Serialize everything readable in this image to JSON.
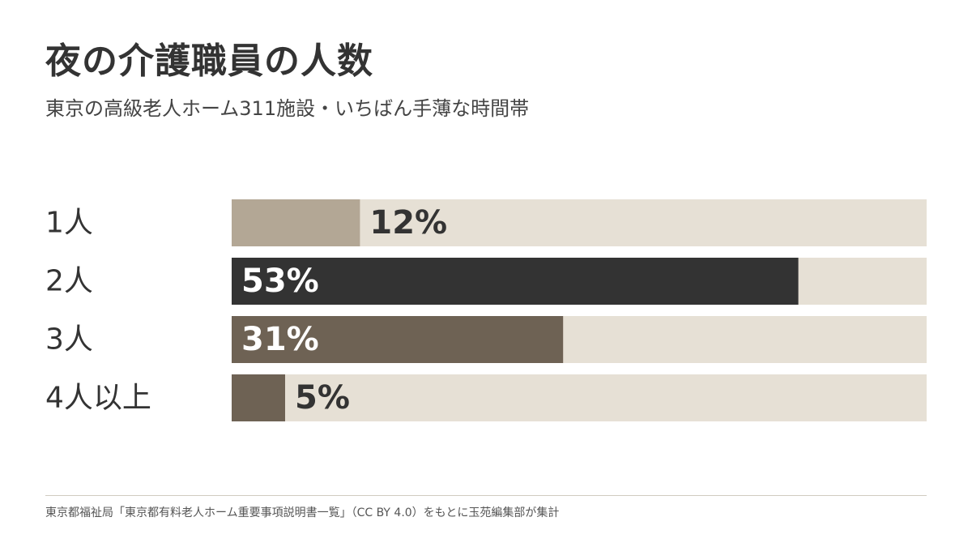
{
  "title": "夜の介護職員の人数",
  "subtitle": "東京の高級老人ホーム311施設・いちばん手薄な時間帯",
  "source": "東京都福祉局「東京都有料老人ホーム重要事項説明書一覧」（CC BY 4.0）をもとに玉苑編集部が集計",
  "chart_data": {
    "type": "bar",
    "orientation": "horizontal",
    "categories": [
      "1人",
      "2人",
      "3人",
      "4人以上"
    ],
    "values": [
      12,
      53,
      31,
      5
    ],
    "value_labels": [
      "12%",
      "53%",
      "31%",
      "5%"
    ],
    "unit": "%",
    "xlim": [
      0,
      65
    ],
    "bar_colors": [
      "#b3a795",
      "#333333",
      "#6e6254",
      "#6e6254"
    ],
    "track_color": "#e6e0d5",
    "label_inside_colors": [
      "#ffffff",
      "#ffffff",
      "#ffffff",
      "#ffffff"
    ],
    "label_outside_color": "#333333",
    "grid": false,
    "legend": "none"
  }
}
